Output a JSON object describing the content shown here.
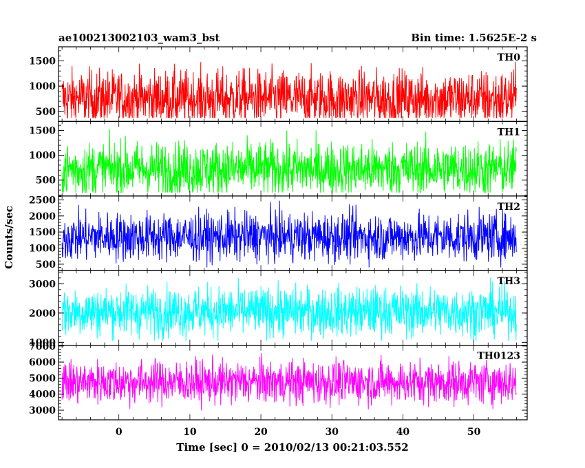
{
  "chart_data": {
    "type": "line",
    "title": "ae100213002103_wam3_bst",
    "subtitle": "Bin time: 1.5625E-2 s",
    "xlabel": "Time [sec] 0 = 2010/02/13 00:21:03.552",
    "ylabel": "Counts/sec",
    "xlim": [
      -8.5,
      57.5
    ],
    "x_ticks": [
      0,
      10,
      20,
      30,
      40,
      50
    ],
    "x_tick_labels": [
      "0",
      "10",
      "20",
      "30",
      "40",
      "50"
    ],
    "data_range": [
      -8,
      56
    ],
    "bin_time": 0.015625,
    "grid": false,
    "panels": [
      {
        "name": "TH0",
        "color": "#ff0000",
        "ylim": [
          300,
          1780
        ],
        "yticks": [
          500,
          1000,
          1500
        ],
        "y_tick_labels": [
          "500",
          "1000",
          "1500"
        ],
        "mean": 750,
        "low": 370,
        "high": 1650
      },
      {
        "name": "TH1",
        "color": "#00ff00",
        "ylim": [
          180,
          1680
        ],
        "yticks": [
          500,
          1000,
          1500
        ],
        "y_tick_labels": [
          "500",
          "1000",
          "1500"
        ],
        "mean": 720,
        "low": 250,
        "high": 1600
      },
      {
        "name": "TH2",
        "color": "#0000ff",
        "ylim": [
          300,
          2620
        ],
        "yticks": [
          500,
          1000,
          1500,
          2000,
          2500
        ],
        "y_tick_labels": [
          "500",
          "1000",
          "1500",
          "2000",
          "2500"
        ],
        "mean": 1350,
        "low": 400,
        "high": 2550
      },
      {
        "name": "TH3",
        "color": "#00ffff",
        "ylim": [
          900,
          3450
        ],
        "yticks": [
          1000,
          2000,
          3000
        ],
        "y_tick_labels": [
          "1000",
          "2000",
          "3000"
        ],
        "mean": 2050,
        "low": 1050,
        "high": 3400
      },
      {
        "name": "TH0123",
        "color": "#ff00ff",
        "ylim": [
          2400,
          7050
        ],
        "yticks": [
          3000,
          4000,
          5000,
          6000,
          7000
        ],
        "y_tick_labels": [
          "3000",
          "4000",
          "5000",
          "6000",
          "7000"
        ],
        "mean": 4750,
        "low": 2700,
        "high": 6900
      }
    ]
  }
}
